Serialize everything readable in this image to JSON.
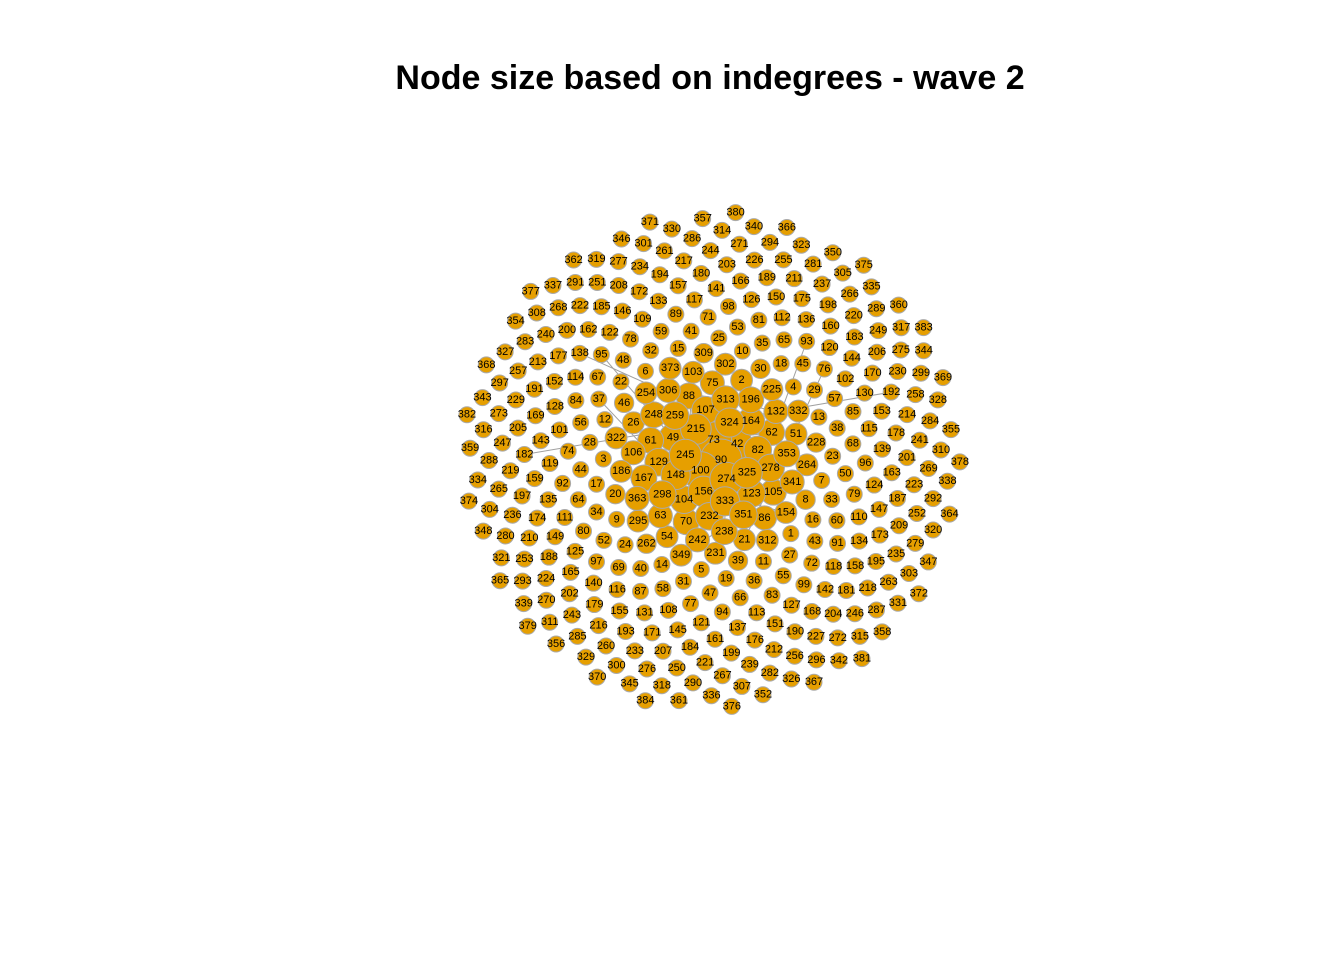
{
  "chart_data": {
    "type": "network",
    "title": "Node size based on indegrees - wave 2",
    "color": "#e69f00",
    "edge_color": "#a0a0a0",
    "nodes": [
      1,
      2,
      3,
      4,
      5,
      6,
      7,
      8,
      9,
      10,
      11,
      12,
      13,
      14,
      15,
      16,
      17,
      18,
      19,
      20,
      21,
      22,
      23,
      24,
      25,
      26,
      27,
      28,
      29,
      30,
      31,
      32,
      33,
      34,
      35,
      36,
      37,
      38,
      39,
      40,
      41,
      42,
      43,
      44,
      45,
      46,
      47,
      48,
      49,
      50,
      51,
      52,
      53,
      54,
      55,
      56,
      57,
      58,
      59,
      60,
      61,
      62,
      63,
      64,
      65,
      66,
      67,
      68,
      69,
      70,
      71,
      72,
      73,
      74,
      75,
      76,
      77,
      78,
      79,
      80,
      81,
      82,
      83,
      84,
      85,
      86,
      87,
      88,
      89,
      90,
      91,
      92,
      93,
      94,
      95,
      96,
      97,
      98,
      99,
      100,
      101,
      102,
      103,
      104,
      105,
      106,
      107,
      108,
      109,
      110,
      111,
      112,
      113,
      114,
      115,
      116,
      117,
      118,
      119,
      120,
      121,
      122,
      123,
      124,
      125,
      126,
      127,
      128,
      129,
      130,
      131,
      132,
      133,
      134,
      135,
      136,
      137,
      138,
      139,
      140,
      141,
      142,
      143,
      144,
      145,
      146,
      147,
      148,
      149,
      150,
      151,
      152,
      153,
      154,
      155,
      156,
      157,
      158,
      159,
      160,
      161,
      162,
      163,
      164,
      165,
      166,
      167,
      168,
      169,
      170,
      171,
      172,
      173,
      174,
      175,
      176,
      177,
      178,
      179,
      180,
      181,
      182,
      183,
      184,
      185,
      186,
      187,
      188,
      189,
      190,
      191,
      192,
      193,
      194,
      195,
      196,
      197,
      198,
      199,
      200,
      201,
      202,
      203,
      204,
      205,
      206,
      207,
      208,
      209,
      210,
      211,
      212,
      213,
      214,
      215,
      216,
      217,
      218,
      219,
      220,
      221,
      222,
      223,
      224,
      225,
      226,
      227,
      228,
      229,
      230,
      231,
      232,
      233,
      234,
      235,
      236,
      237,
      238,
      239,
      240,
      241,
      242,
      243,
      244,
      245,
      246,
      247,
      248,
      249,
      250,
      251,
      252,
      253,
      254,
      255,
      256,
      257,
      258,
      259,
      260,
      261,
      262,
      263,
      264,
      265,
      266,
      267,
      268,
      269,
      270,
      271,
      272,
      273,
      274,
      275,
      276,
      277,
      278,
      279,
      280,
      281,
      282,
      283,
      284,
      285,
      286,
      287,
      288,
      289,
      290,
      291,
      292,
      293,
      294,
      295,
      296,
      297,
      298,
      299,
      300,
      301,
      302,
      303,
      304,
      305,
      306,
      307,
      308,
      309,
      310,
      311,
      312,
      313,
      314,
      315,
      316,
      317,
      318,
      319,
      320,
      321,
      322,
      323,
      324,
      325,
      326,
      327,
      328,
      329,
      330,
      331,
      332,
      333,
      334,
      335,
      336,
      337,
      338,
      339,
      340,
      341,
      342,
      343,
      344,
      345,
      346,
      347,
      348,
      349,
      350,
      351,
      352,
      353,
      354,
      355,
      356,
      357,
      358,
      359,
      360,
      361,
      362,
      363,
      364,
      365,
      366,
      367,
      368,
      369,
      370,
      371,
      372,
      373,
      374,
      375,
      376,
      377,
      378,
      379,
      380,
      381,
      382,
      383,
      384
    ],
    "indegree": [
      1,
      3,
      1,
      1,
      1,
      1,
      1,
      2,
      1,
      1,
      1,
      1,
      1,
      1,
      1,
      1,
      1,
      1,
      1,
      2,
      3,
      1,
      1,
      1,
      1,
      3,
      1,
      1,
      1,
      2,
      1,
      1,
      1,
      1,
      1,
      1,
      1,
      1,
      2,
      1,
      1,
      8,
      1,
      1,
      1,
      2,
      1,
      1,
      6,
      1,
      3,
      1,
      1,
      3,
      1,
      1,
      1,
      1,
      1,
      1,
      5,
      5,
      4,
      1,
      1,
      1,
      1,
      1,
      1,
      5,
      1,
      1,
      12,
      1,
      4,
      1,
      1,
      1,
      1,
      1,
      1,
      6,
      1,
      1,
      1,
      4,
      1,
      5,
      1,
      18,
      1,
      1,
      1,
      1,
      1,
      1,
      1,
      1,
      1,
      14,
      1,
      1,
      3,
      6,
      5,
      4,
      6,
      1,
      1,
      1,
      1,
      1,
      1,
      1,
      1,
      1,
      1,
      1,
      1,
      1,
      1,
      1,
      6,
      1,
      1,
      1,
      1,
      1,
      6,
      1,
      1,
      4,
      1,
      1,
      1,
      1,
      1,
      1,
      1,
      1,
      1,
      1,
      1,
      1,
      1,
      1,
      1,
      7,
      1,
      1,
      1,
      1,
      1,
      3,
      1,
      8,
      1,
      1,
      1,
      1,
      1,
      1,
      1,
      6,
      1,
      1,
      5,
      1,
      1,
      1,
      1,
      1,
      1,
      1,
      1,
      1,
      1,
      1,
      1,
      1,
      1,
      1,
      1,
      1,
      1,
      3,
      1,
      1,
      1,
      1,
      1,
      1,
      1,
      1,
      1,
      5,
      1,
      1,
      1,
      1,
      1,
      1,
      1,
      1,
      1,
      1,
      1,
      1,
      1,
      1,
      1,
      1,
      1,
      1,
      8,
      1,
      1,
      1,
      1,
      1,
      1,
      1,
      1,
      1,
      3,
      1,
      1,
      2,
      1,
      1,
      3,
      6,
      1,
      1,
      1,
      1,
      1,
      5,
      1,
      1,
      1,
      4,
      1,
      1,
      9,
      1,
      1,
      5,
      1,
      1,
      1,
      1,
      1,
      3,
      1,
      1,
      1,
      1,
      6,
      1,
      1,
      2,
      1,
      3,
      1,
      1,
      1,
      1,
      1,
      1,
      1,
      1,
      1,
      10,
      1,
      1,
      1,
      6,
      1,
      1,
      1,
      1,
      1,
      1,
      1,
      1,
      1,
      1,
      1,
      1,
      1,
      1,
      1,
      1,
      3,
      1,
      1,
      6,
      1,
      1,
      1,
      3,
      1,
      1,
      1,
      4,
      1,
      1,
      2,
      1,
      1,
      3,
      6,
      1,
      1,
      1,
      1,
      1,
      1,
      1,
      1,
      3,
      1,
      7,
      8,
      1,
      1,
      1,
      1,
      1,
      1,
      3,
      7,
      1,
      1,
      1,
      1,
      1,
      1,
      1,
      4,
      1,
      1,
      1,
      1,
      1,
      1,
      1,
      3,
      1,
      6,
      1,
      5,
      1,
      1,
      1,
      1,
      1,
      1,
      1,
      1,
      1,
      4,
      1,
      1,
      1,
      1,
      1,
      1,
      1,
      1,
      1,
      3,
      1,
      1,
      1,
      1,
      1,
      1,
      1,
      1,
      1,
      1,
      1
    ],
    "edges": [
      [
        90,
        82
      ],
      [
        90,
        70
      ],
      [
        90,
        73
      ],
      [
        73,
        62
      ],
      [
        73,
        63
      ],
      [
        100,
        148
      ],
      [
        100,
        95
      ],
      [
        148,
        123
      ],
      [
        156,
        107
      ],
      [
        156,
        104
      ],
      [
        104,
        105
      ],
      [
        42,
        129
      ],
      [
        129,
        37
      ],
      [
        215,
        164
      ],
      [
        333,
        306
      ],
      [
        313,
        306
      ],
      [
        351,
        349
      ],
      [
        351,
        21
      ],
      [
        54,
        90
      ],
      [
        21,
        76
      ],
      [
        75,
        42
      ],
      [
        103,
        104
      ],
      [
        154,
        156
      ],
      [
        93,
        123
      ],
      [
        192,
        182
      ],
      [
        259,
        298
      ],
      [
        245,
        254
      ],
      [
        274,
        238
      ],
      [
        132,
        313
      ],
      [
        107,
        138
      ]
    ]
  }
}
